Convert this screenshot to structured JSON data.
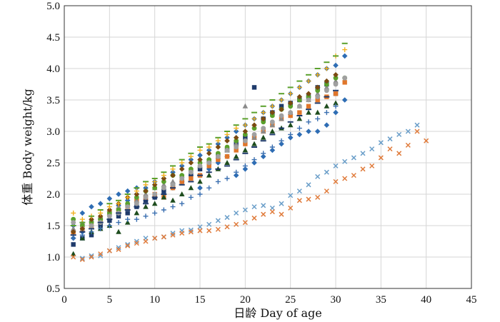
{
  "chart_data": {
    "type": "scatter",
    "title": "",
    "xlabel": "日龄  Day of age",
    "ylabel": "体重  Body weight/kg",
    "xlim": [
      0,
      45
    ],
    "ylim": [
      0.5,
      5.0
    ],
    "xticks": [
      "0",
      "5",
      "10",
      "15",
      "20",
      "25",
      "30",
      "35",
      "40",
      "45"
    ],
    "yticks": [
      "0.5",
      "1.0",
      "1.5",
      "2.0",
      "2.5",
      "3.0",
      "3.5",
      "4.0",
      "4.5",
      "5.0"
    ],
    "grid": true,
    "legend": "none",
    "series": [
      {
        "marker": "diamond",
        "color": "#2e6db4",
        "x": [
          1,
          2,
          3,
          4,
          5,
          6,
          7,
          8,
          9,
          10,
          11,
          12,
          13,
          14,
          15,
          16,
          17,
          18,
          19,
          20,
          21,
          22,
          23,
          24,
          25,
          26,
          27,
          28,
          29,
          30,
          31
        ],
        "y": [
          1.3,
          1.4,
          1.5,
          1.6,
          1.72,
          1.82,
          1.9,
          2.0,
          2.1,
          2.2,
          2.25,
          2.35,
          2.45,
          2.55,
          2.62,
          2.7,
          2.8,
          2.9,
          3.0,
          3.1,
          3.2,
          3.3,
          3.4,
          3.5,
          3.6,
          3.7,
          3.8,
          3.9,
          4.0,
          4.05,
          4.2
        ]
      },
      {
        "marker": "diamond",
        "color": "#2e6db4",
        "x": [
          1,
          2,
          3,
          4,
          5,
          6,
          7,
          8,
          9,
          10,
          11,
          12,
          13,
          14,
          15,
          16,
          17,
          18,
          19,
          20,
          21,
          22,
          23,
          24,
          25,
          26,
          27,
          28,
          29,
          30,
          31
        ],
        "y": [
          1.5,
          1.7,
          1.8,
          1.85,
          1.93,
          2.0,
          2.05,
          2.1,
          1.9,
          1.95,
          2.0,
          2.1,
          2.2,
          2.3,
          2.1,
          2.4,
          2.5,
          2.6,
          2.3,
          2.4,
          2.5,
          2.6,
          2.7,
          2.8,
          2.9,
          2.95,
          3.0,
          3.0,
          3.1,
          3.3,
          3.5
        ]
      },
      {
        "marker": "square",
        "color": "#1f3a6b",
        "x": [
          1,
          2,
          3,
          4,
          5,
          6,
          7,
          8,
          9,
          10,
          11,
          12,
          13,
          14,
          15,
          16,
          17,
          18,
          19,
          20,
          21,
          22,
          23,
          24,
          25,
          26,
          27,
          28,
          29,
          30
        ],
        "y": [
          1.2,
          1.3,
          1.35,
          1.5,
          1.58,
          1.65,
          1.7,
          1.8,
          1.9,
          1.95,
          2.05,
          2.15,
          2.2,
          2.3,
          2.4,
          2.5,
          2.62,
          2.7,
          2.8,
          2.9,
          3.7,
          3.2,
          3.3,
          3.4,
          3.45,
          3.5,
          3.55,
          3.7,
          3.75,
          3.6
        ]
      },
      {
        "marker": "square",
        "color": "#e0762b",
        "x": [
          1,
          2,
          3,
          4,
          5,
          6,
          7,
          8,
          9,
          10,
          11,
          12,
          13,
          14,
          15,
          16,
          17,
          18,
          19,
          20,
          21,
          22,
          23,
          24,
          25,
          26,
          27,
          28,
          29,
          30,
          31
        ],
        "y": [
          1.4,
          1.45,
          1.5,
          1.6,
          1.7,
          1.75,
          1.8,
          1.9,
          1.95,
          2.0,
          1.95,
          2.1,
          2.2,
          2.25,
          2.3,
          2.45,
          2.55,
          2.6,
          2.7,
          2.8,
          2.9,
          3.0,
          3.1,
          3.2,
          3.25,
          3.3,
          3.4,
          3.5,
          3.55,
          3.6,
          3.78
        ]
      },
      {
        "marker": "triangle",
        "color": "#1e4d1e",
        "x": [
          1,
          2,
          3,
          4,
          5,
          6,
          7,
          8,
          9,
          10,
          11,
          12,
          13,
          14,
          15,
          16,
          17,
          18,
          19,
          20,
          21,
          22,
          23,
          24,
          25,
          26,
          27,
          28,
          29,
          30
        ],
        "y": [
          1.05,
          1.3,
          1.4,
          1.45,
          1.5,
          1.4,
          1.55,
          1.7,
          1.8,
          1.85,
          1.95,
          1.9,
          2.0,
          2.1,
          2.2,
          2.3,
          2.4,
          2.5,
          2.6,
          2.7,
          2.8,
          2.9,
          3.0,
          3.05,
          3.1,
          3.2,
          3.3,
          3.3,
          3.4,
          3.45
        ]
      },
      {
        "marker": "triangle",
        "color": "#8a8a8a",
        "x": [
          1,
          2,
          3,
          4,
          5,
          6,
          7,
          8,
          9,
          10,
          11,
          12,
          13,
          14,
          15,
          16,
          17,
          18,
          19,
          20,
          21,
          22,
          23,
          24,
          25,
          26,
          27,
          28,
          29,
          30
        ],
        "y": [
          1.45,
          1.55,
          1.6,
          1.65,
          1.7,
          1.8,
          1.85,
          1.9,
          2.0,
          2.1,
          2.15,
          2.2,
          2.3,
          2.4,
          2.45,
          2.55,
          2.6,
          2.7,
          2.8,
          3.4,
          2.9,
          3.0,
          3.1,
          3.2,
          3.3,
          3.4,
          3.5,
          3.6,
          3.7,
          3.8
        ]
      },
      {
        "marker": "circle",
        "color": "#5aa02c",
        "x": [
          1,
          2,
          3,
          4,
          5,
          6,
          7,
          8,
          9,
          10,
          11,
          12,
          13,
          14,
          15,
          16,
          17,
          18,
          19,
          20,
          21,
          22,
          23,
          24,
          25,
          26,
          27,
          28,
          29,
          30,
          31
        ],
        "y": [
          1.6,
          1.5,
          1.55,
          1.6,
          1.7,
          1.75,
          1.85,
          1.95,
          2.05,
          2.1,
          2.2,
          2.3,
          2.3,
          2.4,
          2.5,
          2.55,
          2.65,
          2.75,
          2.85,
          2.95,
          3.05,
          3.15,
          3.25,
          3.35,
          3.4,
          3.5,
          3.55,
          3.65,
          3.75,
          3.85,
          3.85
        ]
      },
      {
        "marker": "circle",
        "color": "#a0a0a0",
        "x": [
          1,
          2,
          3,
          4,
          5,
          6,
          7,
          8,
          9,
          10,
          11,
          12,
          13,
          14,
          15,
          16,
          17,
          18,
          19,
          20,
          21,
          22,
          23,
          24,
          25,
          26,
          27,
          28,
          29,
          30,
          31
        ],
        "y": [
          1.55,
          1.45,
          1.5,
          1.55,
          1.65,
          1.7,
          1.8,
          1.85,
          1.95,
          2.0,
          2.1,
          2.15,
          2.25,
          2.35,
          2.45,
          2.5,
          2.6,
          2.7,
          2.75,
          2.85,
          2.95,
          3.05,
          3.15,
          3.25,
          3.3,
          3.4,
          3.5,
          3.55,
          3.65,
          3.75,
          3.85
        ]
      },
      {
        "marker": "diamond",
        "color": "#7a4a12",
        "x": [
          1,
          2,
          3,
          4,
          5,
          6,
          7,
          8,
          9,
          10,
          11,
          12,
          13,
          14,
          15,
          16,
          17,
          18,
          19,
          20,
          21,
          22,
          23,
          24,
          25,
          26,
          27,
          28,
          29,
          30
        ],
        "y": [
          1.4,
          1.45,
          1.6,
          1.65,
          1.75,
          1.85,
          1.95,
          2.0,
          2.05,
          2.15,
          2.25,
          2.3,
          2.4,
          2.5,
          2.55,
          2.65,
          2.75,
          2.85,
          2.9,
          3.0,
          3.1,
          3.2,
          3.3,
          3.35,
          3.45,
          3.55,
          3.6,
          3.7,
          3.8,
          3.9
        ]
      },
      {
        "marker": "plus",
        "color": "#f2b01e",
        "x": [
          1,
          2,
          3,
          4,
          5,
          6,
          7,
          8,
          9,
          10,
          11,
          12,
          13,
          14,
          15,
          16,
          17,
          18,
          19,
          20,
          21,
          22,
          23,
          24,
          25,
          26,
          27,
          28,
          29,
          30,
          31
        ],
        "y": [
          1.7,
          1.6,
          1.65,
          1.7,
          1.8,
          1.85,
          1.95,
          2.05,
          2.15,
          2.2,
          2.3,
          2.4,
          2.5,
          2.6,
          2.7,
          2.75,
          2.85,
          2.95,
          3.05,
          3.1,
          3.2,
          3.3,
          3.4,
          3.5,
          3.6,
          3.7,
          3.8,
          3.9,
          4.0,
          4.2,
          4.3
        ]
      },
      {
        "marker": "plus",
        "color": "#3a6fb0",
        "x": [
          1,
          2,
          3,
          4,
          5,
          6,
          7,
          8,
          9,
          10,
          11,
          12,
          13,
          14,
          15,
          16,
          17,
          18,
          19,
          20,
          21,
          22,
          23,
          24,
          25,
          26,
          27,
          28,
          29,
          30
        ],
        "y": [
          1.3,
          1.35,
          1.4,
          1.45,
          1.5,
          1.55,
          1.6,
          1.6,
          1.65,
          1.7,
          1.75,
          1.8,
          1.85,
          1.95,
          2.0,
          2.1,
          2.2,
          2.25,
          2.35,
          2.45,
          2.55,
          2.65,
          2.75,
          2.85,
          2.95,
          3.05,
          3.15,
          3.2,
          3.3,
          3.4
        ]
      },
      {
        "marker": "dash",
        "color": "#5aa02c",
        "x": [
          1,
          2,
          3,
          4,
          5,
          6,
          7,
          8,
          9,
          10,
          11,
          12,
          13,
          14,
          15,
          16,
          17,
          18,
          19,
          20,
          21,
          22,
          23,
          24,
          25,
          26,
          27,
          28,
          29,
          30,
          31
        ],
        "y": [
          1.5,
          1.55,
          1.65,
          1.75,
          1.85,
          1.9,
          2.0,
          2.1,
          2.2,
          2.25,
          2.35,
          2.45,
          2.55,
          2.65,
          2.75,
          2.8,
          2.9,
          3.0,
          3.1,
          3.2,
          3.3,
          3.4,
          3.5,
          3.6,
          3.7,
          3.8,
          3.9,
          4.0,
          4.1,
          4.2,
          4.4
        ]
      },
      {
        "marker": "dash",
        "color": "#1f3a6b",
        "x": [
          1,
          2,
          3,
          4,
          5,
          6,
          7,
          8,
          9,
          10,
          11,
          12,
          13,
          14,
          15,
          16,
          17,
          18,
          19,
          20,
          21,
          22,
          23,
          24,
          25,
          26,
          27,
          28,
          29,
          30
        ],
        "y": [
          1.35,
          1.4,
          1.45,
          1.55,
          1.6,
          1.7,
          1.75,
          1.8,
          1.85,
          1.95,
          2.0,
          2.1,
          2.15,
          2.2,
          2.3,
          2.35,
          2.4,
          2.45,
          2.55,
          2.65,
          2.75,
          2.85,
          2.95,
          3.05,
          3.15,
          3.25,
          3.35,
          3.45,
          3.55,
          3.65
        ]
      },
      {
        "marker": "cross",
        "color": "#6a9ec9",
        "x": [
          2,
          3,
          4,
          5,
          6,
          7,
          8,
          9,
          10,
          11,
          12,
          13,
          14,
          15,
          16,
          17,
          18,
          19,
          20,
          21,
          22,
          23,
          24,
          25,
          26,
          27,
          28,
          29,
          30,
          31,
          32,
          33,
          34,
          35,
          36,
          37,
          38,
          39
        ],
        "y": [
          0.98,
          1.02,
          1.02,
          1.1,
          1.15,
          1.2,
          1.25,
          1.3,
          1.3,
          1.32,
          1.38,
          1.42,
          1.43,
          1.48,
          1.52,
          1.58,
          1.63,
          1.7,
          1.75,
          1.8,
          1.82,
          1.78,
          1.85,
          1.98,
          2.05,
          2.15,
          2.28,
          2.35,
          2.45,
          2.52,
          2.58,
          2.65,
          2.72,
          2.82,
          2.88,
          2.95,
          3.0,
          3.1
        ]
      },
      {
        "marker": "cross",
        "color": "#e07b3b",
        "x": [
          1,
          2,
          3,
          4,
          5,
          6,
          7,
          8,
          9,
          10,
          11,
          12,
          13,
          14,
          15,
          16,
          17,
          18,
          19,
          20,
          21,
          22,
          23,
          24,
          25,
          26,
          27,
          28,
          29,
          30,
          31,
          32,
          33,
          34,
          35,
          36,
          37,
          38,
          39,
          40
        ],
        "y": [
          1.0,
          0.96,
          1.0,
          1.05,
          1.1,
          1.12,
          1.18,
          1.22,
          1.25,
          1.3,
          1.32,
          1.35,
          1.38,
          1.4,
          1.42,
          1.42,
          1.44,
          1.48,
          1.52,
          1.55,
          1.62,
          1.68,
          1.72,
          1.68,
          1.78,
          1.9,
          1.92,
          1.95,
          2.05,
          2.2,
          2.25,
          2.3,
          2.4,
          2.45,
          2.58,
          2.72,
          2.65,
          2.78,
          3.0,
          2.85
        ]
      }
    ]
  }
}
